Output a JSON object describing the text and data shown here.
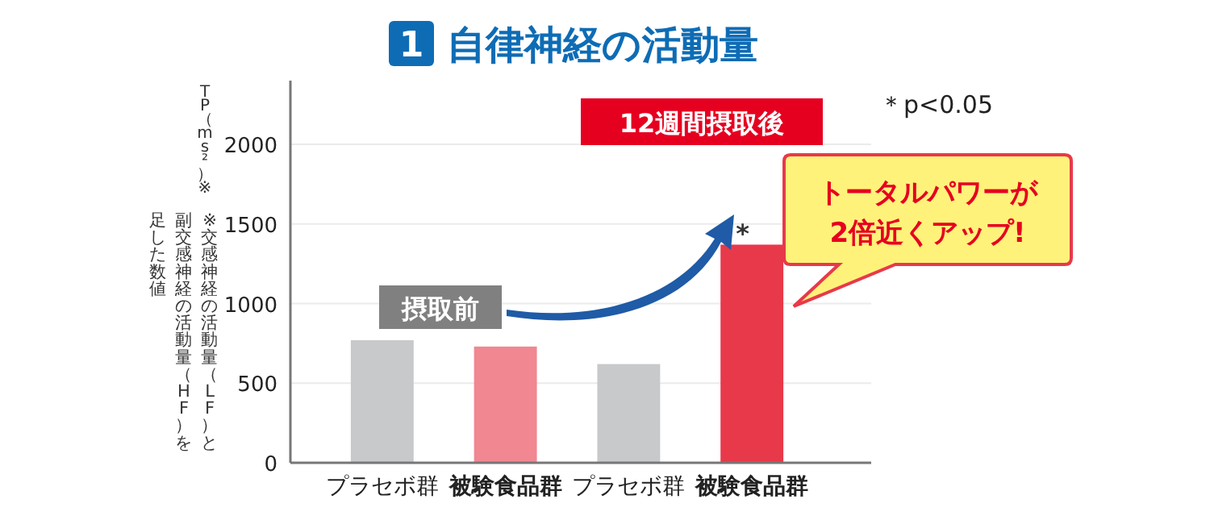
{
  "chart_data": {
    "type": "bar",
    "title": "自律神経の活動量",
    "ylabel": "TP（ms²）※",
    "categories": [
      "プラセボ群",
      "被験食品群",
      "プラセボ群",
      "被験食品群"
    ],
    "values": [
      770,
      730,
      620,
      1370
    ],
    "colors": [
      "#c8c9cb",
      "#f08791",
      "#c8c9cb",
      "#e8394a"
    ],
    "ylim": [
      0,
      2400
    ],
    "yticks": [
      0,
      500,
      1000,
      1500,
      2000
    ],
    "grid": "y",
    "annotations": [
      "1",
      "＊p<0.05",
      "12週間摂取後",
      "摂取前",
      "トータルパワーが\n2倍近くアップ!",
      "*",
      "※交感神経の活動量（LF）と",
      "副交感神経の活動量（HF）を",
      "足した数値"
    ]
  }
}
